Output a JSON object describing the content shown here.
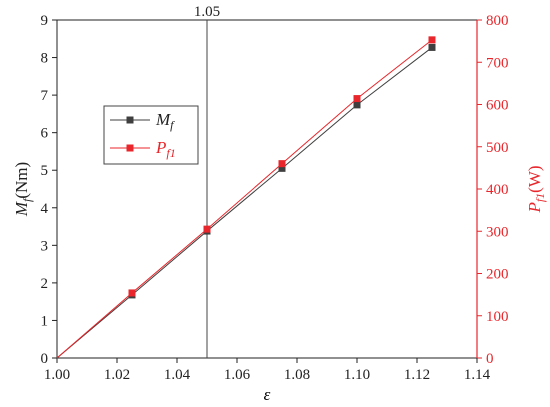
{
  "chart_data": {
    "type": "line",
    "x": [
      1.0,
      1.025,
      1.05,
      1.075,
      1.1,
      1.125
    ],
    "xlim": [
      1.0,
      1.14
    ],
    "xticks": [
      "1.00",
      "1.02",
      "1.04",
      "1.06",
      "1.08",
      "1.10",
      "1.12",
      "1.14"
    ],
    "xlabel": "ε",
    "left_axis": {
      "label_main": "M",
      "label_sub": "f",
      "label_unit": "(Nm)",
      "ylim": [
        0,
        9
      ],
      "ticks": [
        "0",
        "1",
        "2",
        "3",
        "4",
        "5",
        "6",
        "7",
        "8",
        "9"
      ]
    },
    "right_axis": {
      "label_main": "P",
      "label_sub": "f1",
      "label_unit": "(W)",
      "ylim": [
        0,
        800
      ],
      "ticks": [
        "0",
        "100",
        "200",
        "300",
        "400",
        "500",
        "600",
        "700",
        "800"
      ]
    },
    "series": [
      {
        "name_main": "M",
        "name_sub": "f",
        "axis": "left",
        "color": "#3f3f3f",
        "values": [
          0.0,
          1.68,
          3.38,
          5.05,
          6.74,
          8.27
        ]
      },
      {
        "name_main": "P",
        "name_sub": "f1",
        "axis": "right",
        "color": "#e8262b",
        "values": [
          0.0,
          154,
          305,
          460,
          614,
          753
        ]
      }
    ],
    "reference_line": {
      "x": 1.05,
      "label": "1.05"
    }
  }
}
